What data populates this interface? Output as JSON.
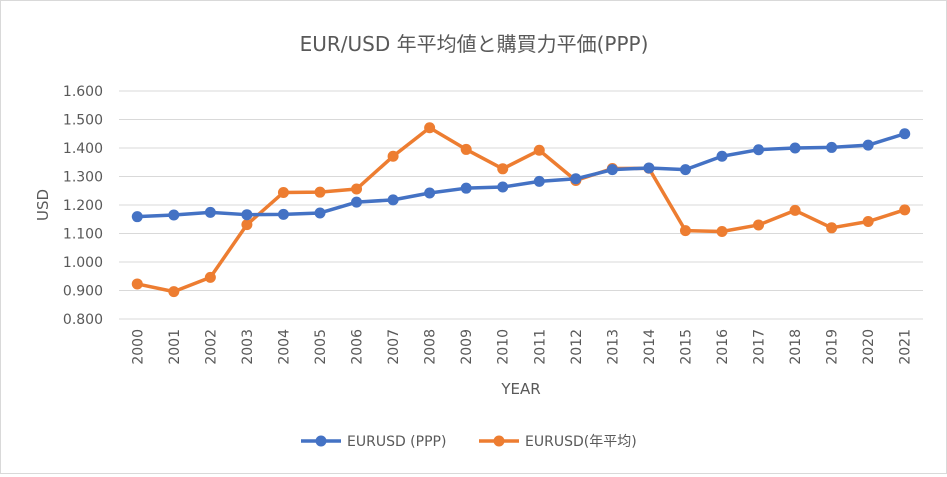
{
  "chart_data": {
    "type": "line",
    "title": "EUR/USD 年平均値と購買力平価(PPP)",
    "xlabel": "YEAR",
    "ylabel": "USD",
    "ylim": [
      0.8,
      1.6
    ],
    "y_ticks": [
      "0.800",
      "0.900",
      "1.000",
      "1.100",
      "1.200",
      "1.300",
      "1.400",
      "1.500",
      "1.600"
    ],
    "grid": true,
    "legend_position": "bottom",
    "categories": [
      "2000",
      "2001",
      "2002",
      "2003",
      "2004",
      "2005",
      "2006",
      "2007",
      "2008",
      "2009",
      "2010",
      "2011",
      "2012",
      "2013",
      "2014",
      "2015",
      "2016",
      "2017",
      "2018",
      "2019",
      "2020",
      "2021"
    ],
    "series": [
      {
        "name": "EURUSD (PPP)",
        "color": "#4472C4",
        "values": [
          1.159,
          1.165,
          1.174,
          1.166,
          1.167,
          1.172,
          1.21,
          1.218,
          1.242,
          1.259,
          1.263,
          1.283,
          1.292,
          1.324,
          1.33,
          1.324,
          1.371,
          1.394,
          1.4,
          1.402,
          1.41,
          1.45
        ]
      },
      {
        "name": "EURUSD(年平均)",
        "color": "#ED7D31",
        "values": [
          0.923,
          0.896,
          0.946,
          1.131,
          1.244,
          1.245,
          1.256,
          1.371,
          1.471,
          1.395,
          1.327,
          1.392,
          1.286,
          1.328,
          1.329,
          1.11,
          1.107,
          1.13,
          1.181,
          1.12,
          1.142,
          1.183
        ]
      }
    ]
  }
}
